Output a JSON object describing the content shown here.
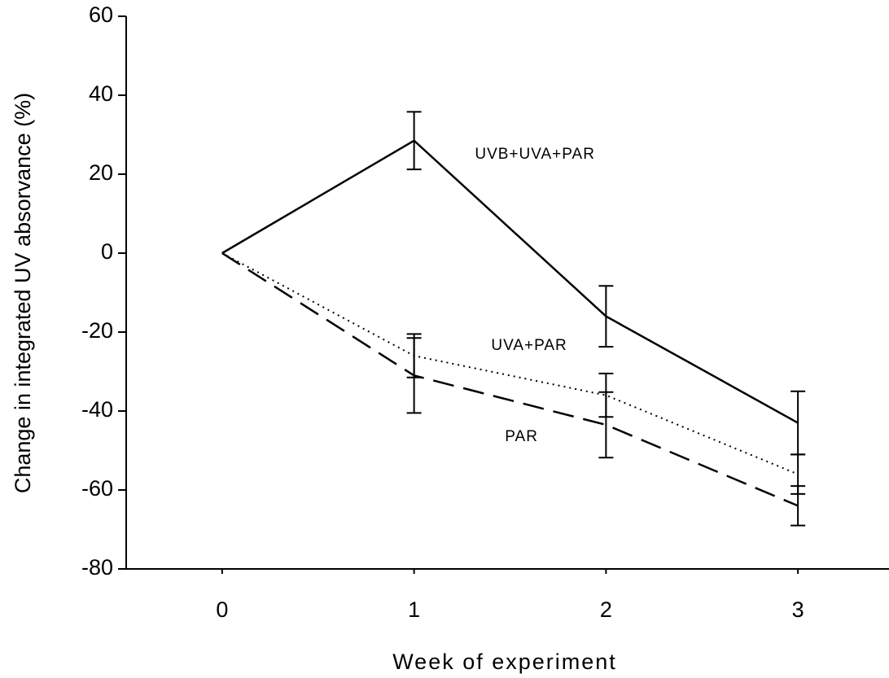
{
  "chart_data": {
    "type": "line",
    "x_label": "Week of experiment",
    "y_label": "Change in integrated UV absorvance (%)",
    "x": [
      0,
      1,
      2,
      3
    ],
    "series": [
      {
        "name": "UVB+UVA+PAR",
        "color": "#000000",
        "style": "solid",
        "values": [
          0,
          28.5,
          -16,
          -43
        ],
        "errors": [
          0,
          7.3,
          7.7,
          8
        ]
      },
      {
        "name": "UVA+PAR",
        "color": "#000000",
        "style": "dotted",
        "values": [
          0,
          -26,
          -36,
          -56
        ],
        "errors": [
          0,
          5.5,
          5.5,
          5
        ]
      },
      {
        "name": "PAR",
        "color": "#000000",
        "style": "dashed",
        "values": [
          0,
          -31,
          -43.5,
          -64
        ],
        "errors": [
          0,
          9.5,
          8.3,
          5
        ]
      }
    ],
    "xlim": [
      -0.5,
      3.5
    ],
    "xticks": [
      0,
      1,
      2,
      3
    ],
    "ylim": [
      -80,
      60
    ],
    "yticks": [
      -80,
      -60,
      -40,
      -20,
      0,
      20,
      40,
      60
    ]
  }
}
